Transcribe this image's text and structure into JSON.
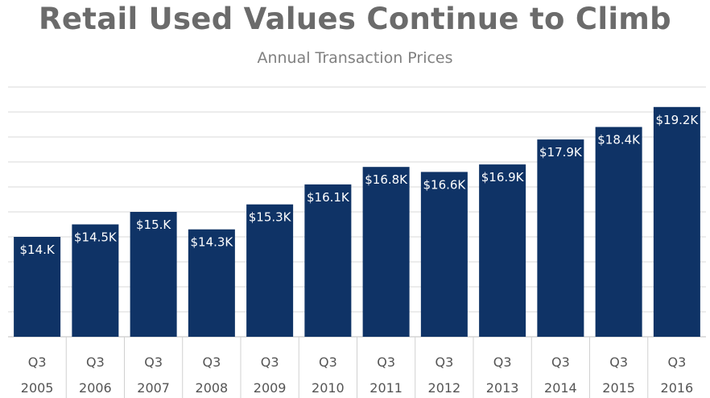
{
  "chart_data": {
    "type": "bar",
    "title": "Retail Used Values Continue to Climb",
    "subtitle": "Annual Transaction Prices",
    "categories": [
      [
        "Q3",
        "2005"
      ],
      [
        "Q3",
        "2006"
      ],
      [
        "Q3",
        "2007"
      ],
      [
        "Q3",
        "2008"
      ],
      [
        "Q3",
        "2009"
      ],
      [
        "Q3",
        "2010"
      ],
      [
        "Q3",
        "2011"
      ],
      [
        "Q3",
        "2012"
      ],
      [
        "Q3",
        "2013"
      ],
      [
        "Q3",
        "2014"
      ],
      [
        "Q3",
        "2015"
      ],
      [
        "Q3",
        "2016"
      ]
    ],
    "values": [
      14.0,
      14.5,
      15.0,
      14.3,
      15.3,
      16.1,
      16.8,
      16.6,
      16.9,
      17.9,
      18.4,
      19.2
    ],
    "value_labels": [
      "$14.K",
      "$14.5K",
      "$15.K",
      "$14.3K",
      "$15.3K",
      "$16.1K",
      "$16.8K",
      "$16.6K",
      "$16.9K",
      "$17.9K",
      "$18.4K",
      "$19.2K"
    ],
    "ylim": [
      10,
      20
    ],
    "grid": true,
    "colors": {
      "bar": "#0f3366",
      "grid": "#d9d9d9",
      "title": "#6b6b6b"
    }
  }
}
